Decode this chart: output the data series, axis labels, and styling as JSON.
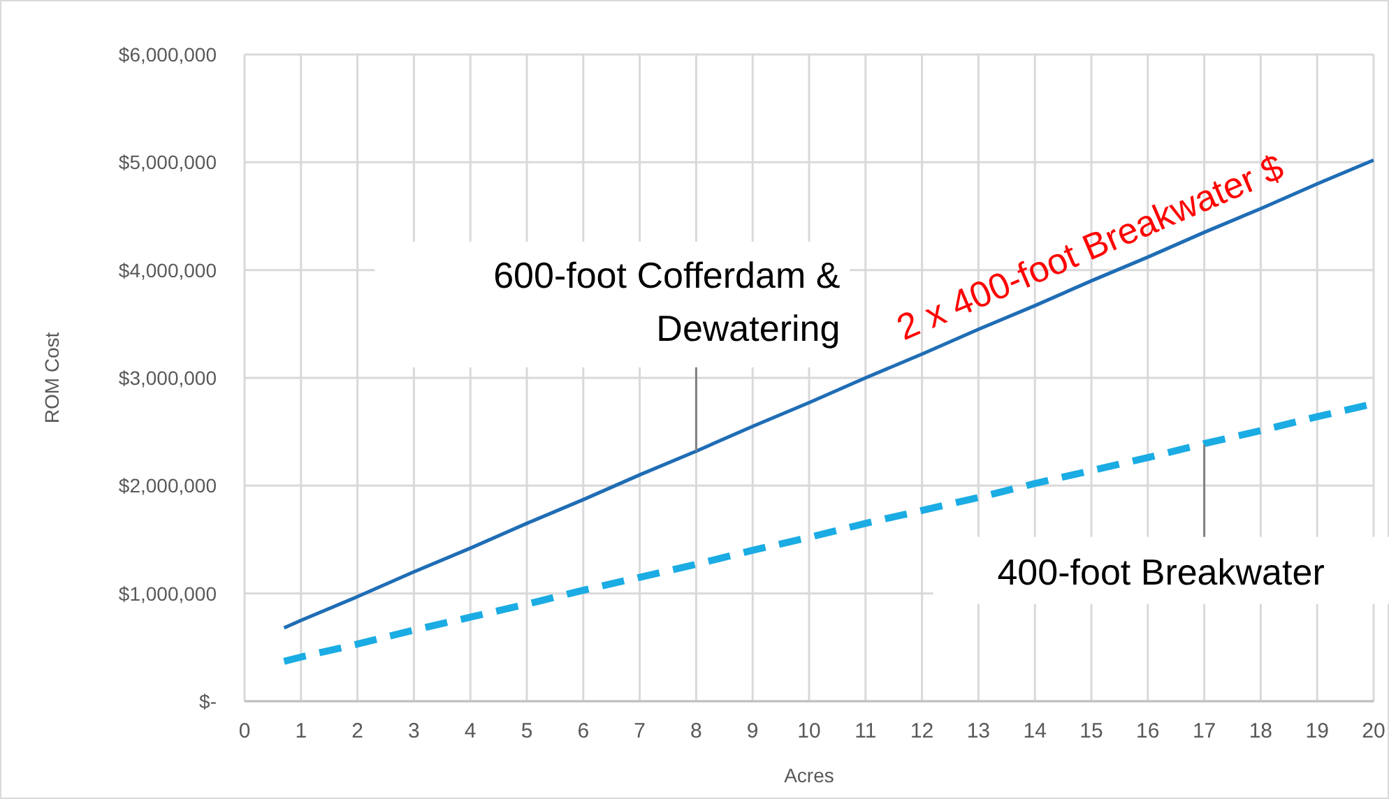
{
  "chart_data": {
    "type": "line",
    "xlabel": "Acres",
    "ylabel": "ROM Cost",
    "xlim": [
      0,
      20
    ],
    "xticks": [
      0,
      1,
      2,
      3,
      4,
      5,
      6,
      7,
      8,
      9,
      10,
      11,
      12,
      13,
      14,
      15,
      16,
      17,
      18,
      19,
      20
    ],
    "ylim": [
      0,
      6000000
    ],
    "yticks": [
      {
        "value": 0,
        "label": "$-"
      },
      {
        "value": 1000000,
        "label": "$1,000,000"
      },
      {
        "value": 2000000,
        "label": "$2,000,000"
      },
      {
        "value": 3000000,
        "label": "$3,000,000"
      },
      {
        "value": 4000000,
        "label": "$4,000,000"
      },
      {
        "value": 5000000,
        "label": "$5,000,000"
      },
      {
        "value": 6000000,
        "label": "$6,000,000"
      }
    ],
    "grid": true,
    "series": [
      {
        "color": "#1f6db5",
        "line_style": "solid",
        "x": [
          0.7,
          1,
          2,
          3,
          4,
          5,
          6,
          7,
          8,
          9,
          10,
          11,
          12,
          13,
          14,
          15,
          16,
          17,
          18,
          19,
          20
        ],
        "values": [
          680000,
          750000,
          970000,
          1200000,
          1420000,
          1650000,
          1870000,
          2100000,
          2320000,
          2550000,
          2770000,
          3000000,
          3220000,
          3450000,
          3670000,
          3900000,
          4120000,
          4350000,
          4570000,
          4800000,
          5020000
        ]
      },
      {
        "color": "#1aace3",
        "line_style": "dashed",
        "x": [
          0.7,
          1,
          2,
          3,
          4,
          5,
          6,
          7,
          8,
          9,
          10,
          11,
          12,
          13,
          14,
          15,
          16,
          17,
          18,
          19,
          20
        ],
        "values": [
          370000,
          410000,
          530000,
          660000,
          780000,
          900000,
          1030000,
          1150000,
          1270000,
          1400000,
          1520000,
          1650000,
          1770000,
          1890000,
          2020000,
          2140000,
          2260000,
          2390000,
          2510000,
          2640000,
          2760000
        ]
      }
    ],
    "annotations": [
      {
        "text": "600-foot Cofferdam & Dewatering",
        "x": 8,
        "y": 2320000
      },
      {
        "text": "400-foot Breakwater",
        "x": 17,
        "y": 2380000
      },
      {
        "text": "2 x 400-foot Breakwater $",
        "x": 15.2,
        "y": 3940000
      }
    ]
  }
}
